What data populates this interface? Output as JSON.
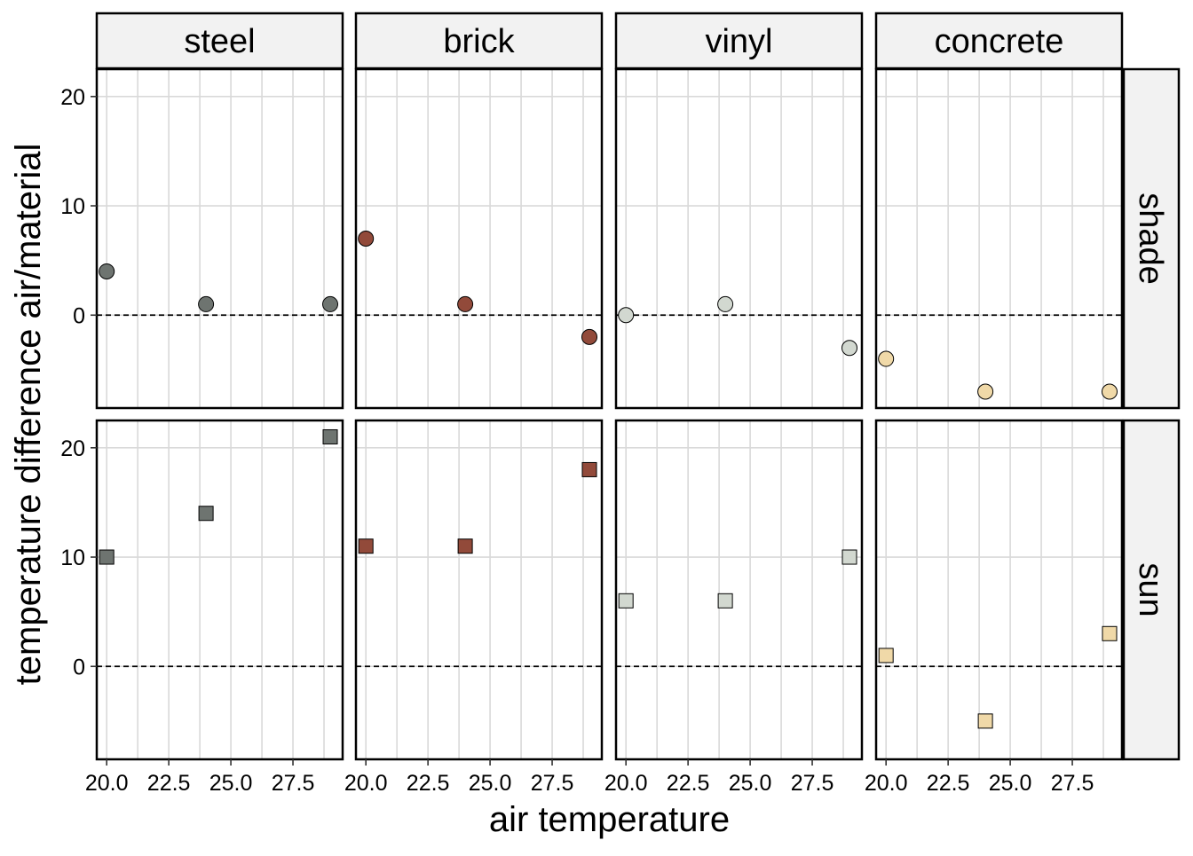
{
  "chart_data": {
    "type": "scatter",
    "facet_columns": [
      "steel",
      "brick",
      "vinyl",
      "concrete"
    ],
    "facet_rows": [
      "shade",
      "sun"
    ],
    "xlabel": "air temperature",
    "ylabel": "temperature difference air/material",
    "x_ticks": [
      20.0,
      22.5,
      25.0,
      27.5
    ],
    "x_tick_labels": [
      "20.0",
      "22.5",
      "25.0",
      "27.5"
    ],
    "xlim": [
      19.6,
      29.5
    ],
    "y_ticks": [
      0,
      10,
      20
    ],
    "y_tick_labels": [
      "0",
      "10",
      "20"
    ],
    "ylim": [
      -8.5,
      22.5
    ],
    "reference_line_y": 0,
    "grid": true,
    "marker_shapes": {
      "shade": "circle",
      "sun": "square"
    },
    "colors": {
      "steel": "#6e7470",
      "brick": "#924a3a",
      "vinyl": "#d2d8d0",
      "concrete": "#f0d9a8"
    },
    "panels": [
      {
        "column": "steel",
        "row": "shade",
        "x": [
          20,
          24,
          29
        ],
        "y": [
          4,
          1,
          1
        ]
      },
      {
        "column": "brick",
        "row": "shade",
        "x": [
          20,
          24,
          29
        ],
        "y": [
          7,
          1,
          -2
        ]
      },
      {
        "column": "vinyl",
        "row": "shade",
        "x": [
          20,
          24,
          29
        ],
        "y": [
          0,
          1,
          -3
        ]
      },
      {
        "column": "concrete",
        "row": "shade",
        "x": [
          20,
          24,
          29
        ],
        "y": [
          -4,
          -7,
          -7
        ]
      },
      {
        "column": "steel",
        "row": "sun",
        "x": [
          20,
          24,
          29
        ],
        "y": [
          10,
          14,
          21
        ]
      },
      {
        "column": "brick",
        "row": "sun",
        "x": [
          20,
          24,
          29
        ],
        "y": [
          11,
          11,
          18
        ]
      },
      {
        "column": "vinyl",
        "row": "sun",
        "x": [
          20,
          24,
          29
        ],
        "y": [
          6,
          6,
          10
        ]
      },
      {
        "column": "concrete",
        "row": "sun",
        "x": [
          20,
          24,
          29
        ],
        "y": [
          1,
          -5,
          3
        ]
      }
    ]
  }
}
